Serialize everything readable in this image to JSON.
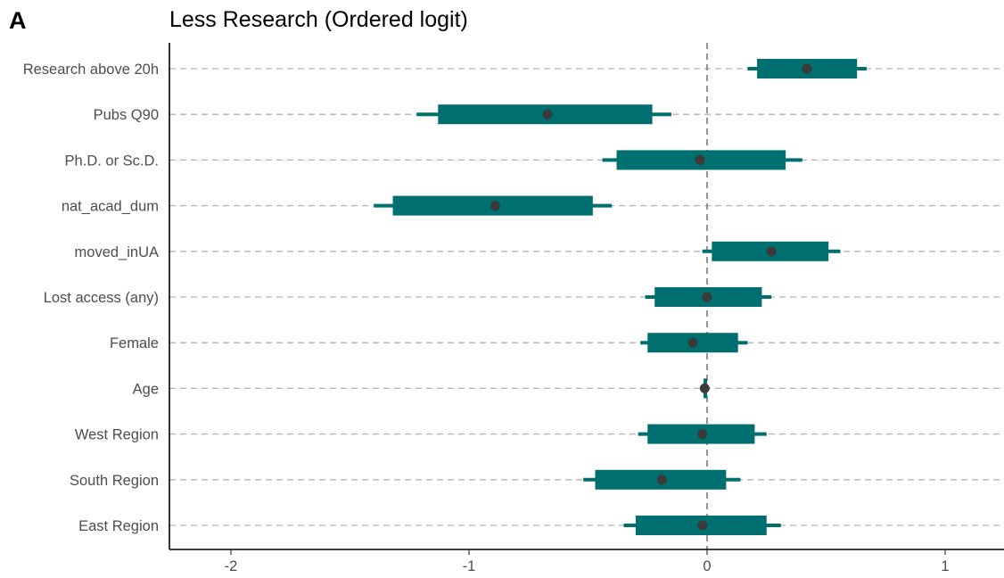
{
  "panel_label": "A",
  "chart_data": {
    "type": "coefficient-plot",
    "title": "Less Research (Ordered logit)",
    "xlabel": "",
    "ylabel": "",
    "xlim": [
      -2.25,
      1.25
    ],
    "xticks": [
      -2,
      -1,
      0,
      1
    ],
    "xtick_labels": [
      "-2",
      "-1",
      "0",
      "1"
    ],
    "reference_line": 0,
    "grid": "horizontal dashed",
    "colors": {
      "interval": "#006f6f",
      "point": "#3a3a3a",
      "grid": "#b3b3b3",
      "reference": "#7a7a7a"
    },
    "terms": [
      {
        "label": "Research above 20h",
        "estimate": 0.42,
        "ci_inner": [
          0.21,
          0.63
        ],
        "ci_outer": [
          0.17,
          0.67
        ]
      },
      {
        "label": "Pubs Q90",
        "estimate": -0.67,
        "ci_inner": [
          -1.13,
          -0.23
        ],
        "ci_outer": [
          -1.22,
          -0.15
        ]
      },
      {
        "label": "Ph.D. or Sc.D.",
        "estimate": -0.03,
        "ci_inner": [
          -0.38,
          0.33
        ],
        "ci_outer": [
          -0.44,
          0.4
        ]
      },
      {
        "label": "nat_acad_dum",
        "estimate": -0.89,
        "ci_inner": [
          -1.32,
          -0.48
        ],
        "ci_outer": [
          -1.4,
          -0.4
        ]
      },
      {
        "label": "moved_inUA",
        "estimate": 0.27,
        "ci_inner": [
          0.02,
          0.51
        ],
        "ci_outer": [
          -0.02,
          0.56
        ]
      },
      {
        "label": "Lost access (any)",
        "estimate": 0.0,
        "ci_inner": [
          -0.22,
          0.23
        ],
        "ci_outer": [
          -0.26,
          0.27
        ]
      },
      {
        "label": "Female",
        "estimate": -0.06,
        "ci_inner": [
          -0.25,
          0.13
        ],
        "ci_outer": [
          -0.28,
          0.17
        ]
      },
      {
        "label": "Age",
        "estimate": -0.01,
        "ci_inner": [
          -0.015,
          0.0
        ],
        "ci_outer": [
          -0.02,
          0.005
        ]
      },
      {
        "label": "West Region",
        "estimate": -0.02,
        "ci_inner": [
          -0.25,
          0.2
        ],
        "ci_outer": [
          -0.29,
          0.25
        ]
      },
      {
        "label": "South Region",
        "estimate": -0.19,
        "ci_inner": [
          -0.47,
          0.08
        ],
        "ci_outer": [
          -0.52,
          0.14
        ]
      },
      {
        "label": "East Region",
        "estimate": -0.02,
        "ci_inner": [
          -0.3,
          0.25
        ],
        "ci_outer": [
          -0.35,
          0.31
        ]
      }
    ]
  }
}
